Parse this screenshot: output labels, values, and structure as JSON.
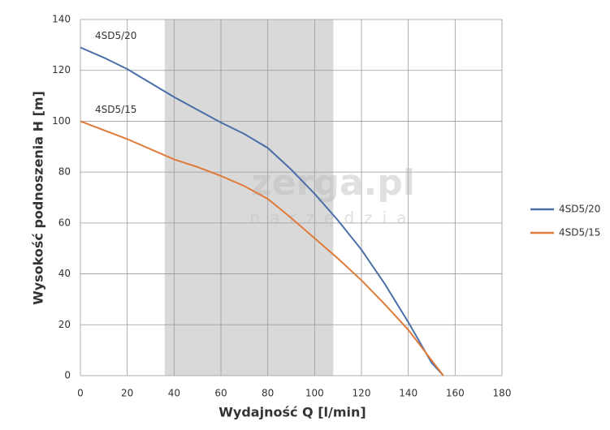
{
  "chart_data": {
    "type": "line",
    "x_label": "Wydajność Q [l/min]",
    "y_label": "Wysokość podnoszenia H [m]",
    "x": [
      0,
      10,
      20,
      30,
      40,
      50,
      60,
      70,
      80,
      90,
      100,
      110,
      120,
      130,
      140,
      150,
      155
    ],
    "series": [
      {
        "name": "4SD5/20",
        "color": "#4a6fa8",
        "values": [
          129,
          125,
          120.5,
          115,
          109.5,
          104.5,
          99.5,
          95,
          89.5,
          81,
          71.5,
          61,
          49.5,
          36,
          21,
          5,
          0
        ]
      },
      {
        "name": "4SD5/15",
        "color": "#e07b39",
        "values": [
          100,
          96.5,
          93,
          89,
          85,
          82,
          78.5,
          74.5,
          69.5,
          62,
          54,
          46,
          37.5,
          28,
          18,
          6,
          0
        ]
      }
    ],
    "xlim": [
      0,
      180
    ],
    "xticks": [
      0,
      20,
      40,
      60,
      80,
      100,
      120,
      140,
      160,
      180
    ],
    "ylim": [
      0,
      140
    ],
    "yticks": [
      0,
      20,
      40,
      60,
      80,
      100,
      120,
      140
    ],
    "grid": true,
    "legend": "right",
    "shaded_range": [
      36,
      108
    ],
    "watermark": [
      "zerga.pl",
      "narzędzia"
    ]
  }
}
